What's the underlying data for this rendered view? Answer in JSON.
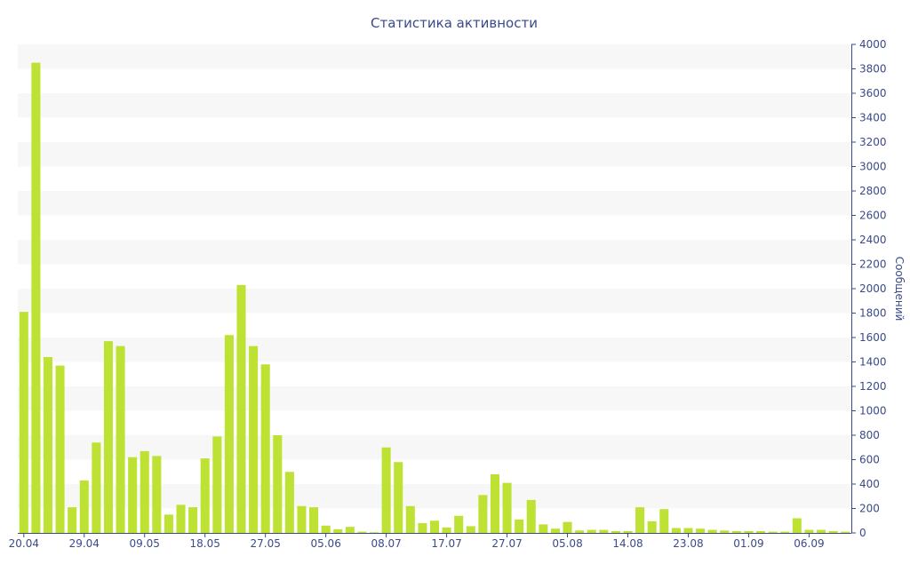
{
  "chart_data": {
    "type": "bar",
    "title": "Статистика активности",
    "ylabel": "Сообщений",
    "xlabel": "",
    "ylim": [
      0,
      4000
    ],
    "ytick_step": 200,
    "bar_color": "#bde234",
    "band_color": "#f7f7f7",
    "text_color": "#3a4a8a",
    "x_tick_labels": [
      {
        "index": 0,
        "label": "20.04"
      },
      {
        "index": 5,
        "label": "29.04"
      },
      {
        "index": 10,
        "label": "09.05"
      },
      {
        "index": 15,
        "label": "18.05"
      },
      {
        "index": 20,
        "label": "27.05"
      },
      {
        "index": 25,
        "label": "05.06"
      },
      {
        "index": 30,
        "label": "08.07"
      },
      {
        "index": 35,
        "label": "17.07"
      },
      {
        "index": 40,
        "label": "27.07"
      },
      {
        "index": 45,
        "label": "05.08"
      },
      {
        "index": 50,
        "label": "14.08"
      },
      {
        "index": 55,
        "label": "23.08"
      },
      {
        "index": 60,
        "label": "01.09"
      },
      {
        "index": 65,
        "label": "06.09"
      }
    ],
    "values": [
      1810,
      3850,
      1440,
      1370,
      210,
      430,
      740,
      1570,
      1530,
      620,
      670,
      630,
      150,
      230,
      210,
      610,
      790,
      1620,
      2030,
      1530,
      1380,
      800,
      500,
      220,
      210,
      60,
      30,
      50,
      10,
      5,
      700,
      580,
      220,
      80,
      100,
      45,
      140,
      55,
      310,
      480,
      410,
      110,
      270,
      70,
      35,
      90,
      20,
      25,
      25,
      15,
      15,
      210,
      95,
      195,
      40,
      40,
      35,
      25,
      20,
      15,
      15,
      15,
      10,
      10,
      120,
      25,
      25,
      15,
      10
    ]
  }
}
